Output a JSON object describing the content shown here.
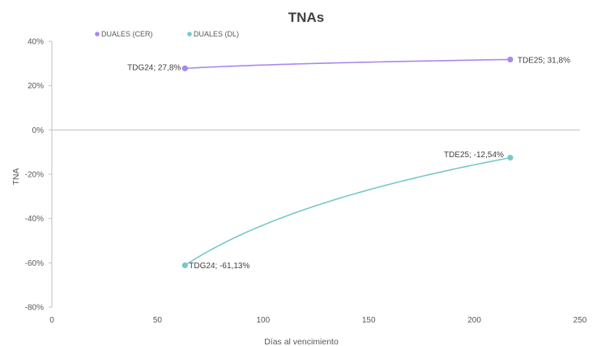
{
  "chart_data": {
    "type": "scatter",
    "title": "TNAs",
    "xlabel": "Días al vencimiento",
    "ylabel": "TNA",
    "xlim": [
      0,
      250
    ],
    "ylim": [
      -80,
      40
    ],
    "x_ticks": [
      0,
      50,
      100,
      150,
      200,
      250
    ],
    "y_ticks": [
      40,
      20,
      0,
      -20,
      -40,
      -60,
      -80
    ],
    "y_tick_format": "percent",
    "grid": false,
    "legend_position": "top-left",
    "series": [
      {
        "name": "DUALES (CER)",
        "color": "#a888ee",
        "trendline": "logarithmic",
        "points": [
          {
            "x": 63,
            "y": 27.8,
            "label": "TDG24; 27,8%"
          },
          {
            "x": 217,
            "y": 31.8,
            "label": "TDE25; 31,8%"
          }
        ]
      },
      {
        "name": "DUALES (DL)",
        "color": "#78c8c8",
        "trendline": "logarithmic",
        "points": [
          {
            "x": 63,
            "y": -61.13,
            "label": "TDG24; -61,13%"
          },
          {
            "x": 217,
            "y": -12.54,
            "label": "TDE25; -12,54%"
          }
        ]
      }
    ]
  }
}
